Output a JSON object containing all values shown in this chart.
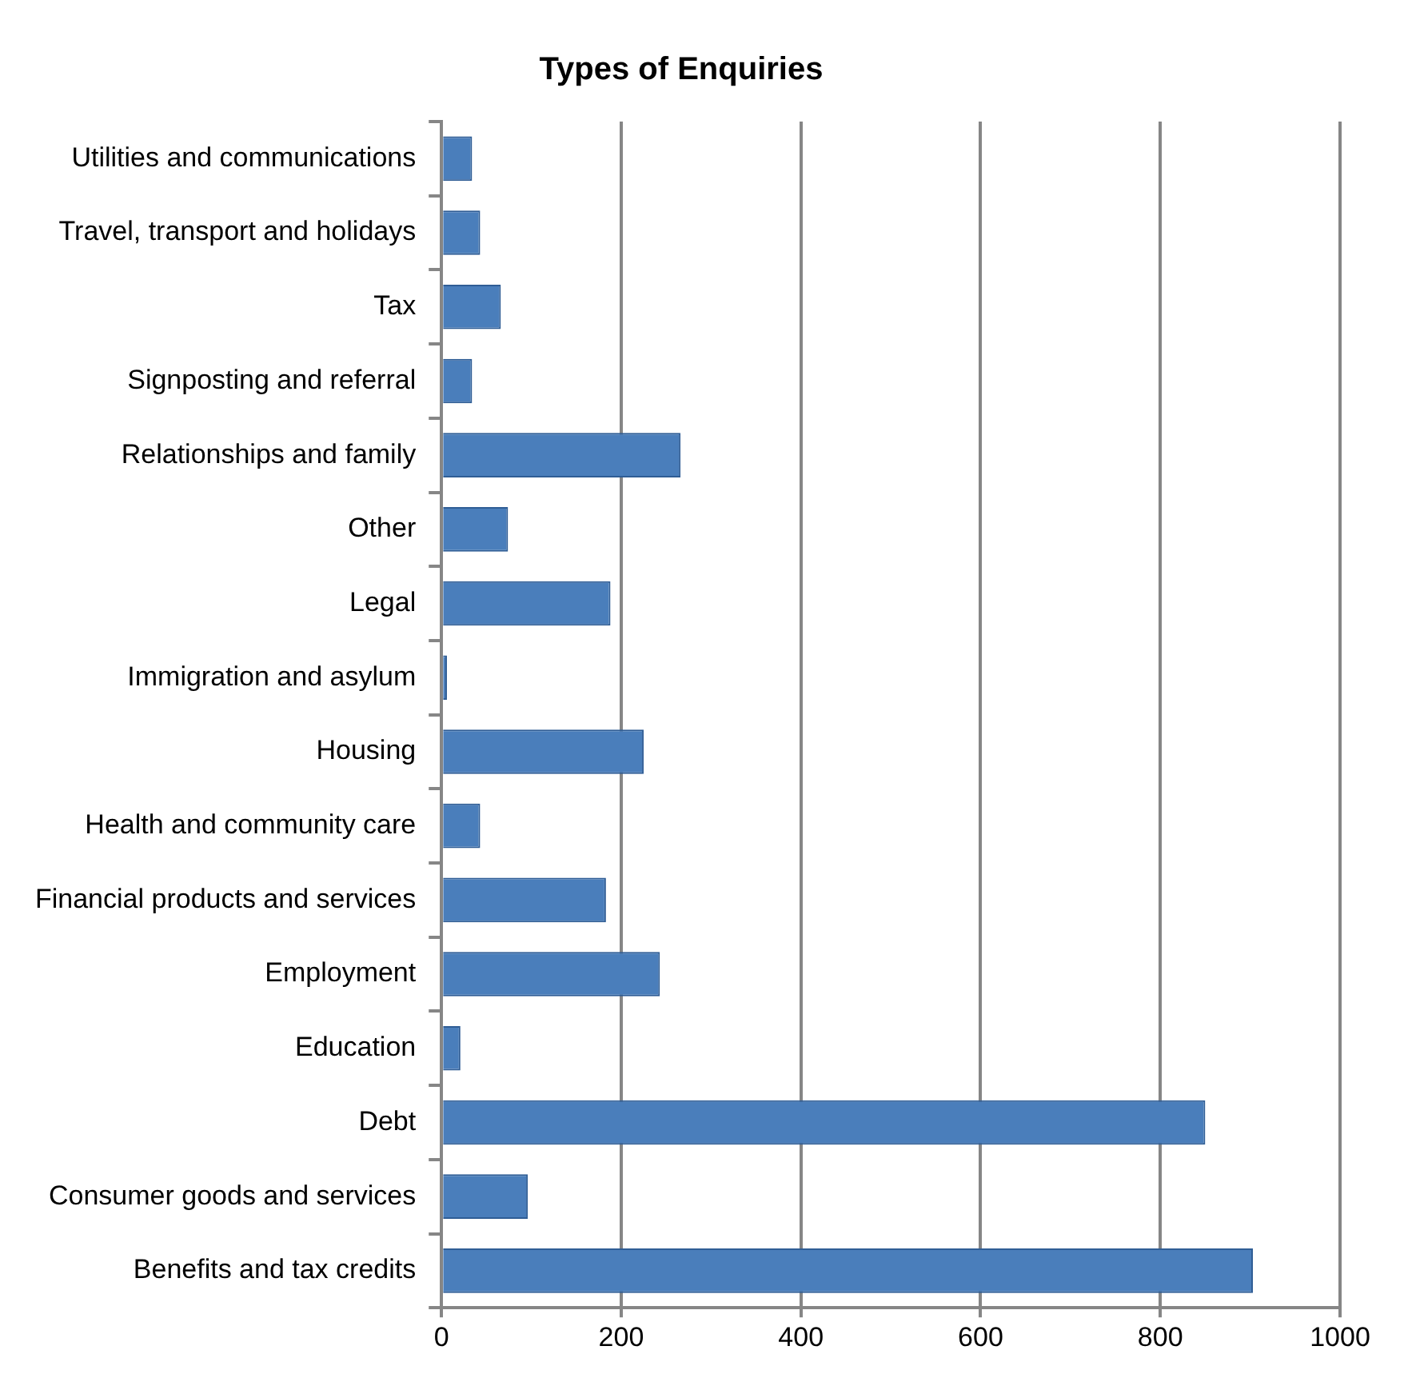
{
  "chart_data": {
    "type": "bar",
    "orientation": "horizontal",
    "title": "Types of Enquiries",
    "categories": [
      "Utilities and communications",
      "Travel, transport and holidays",
      "Tax",
      "Signposting and referral",
      "Relationships and family",
      "Other",
      "Legal",
      "Immigration and asylum",
      "Housing",
      "Health and community care",
      "Financial products and services",
      "Employment",
      "Education",
      "Debt",
      "Consumer goods and services",
      "Benefits and tax credits"
    ],
    "values": [
      34,
      43,
      66,
      34,
      266,
      74,
      188,
      6,
      225,
      43,
      183,
      243,
      21,
      850,
      96,
      903
    ],
    "color": "#4a7ebb",
    "xlim": [
      0,
      1000
    ],
    "xticks": [
      0,
      200,
      400,
      600,
      800,
      1000
    ],
    "grid": "x",
    "legend": false
  }
}
